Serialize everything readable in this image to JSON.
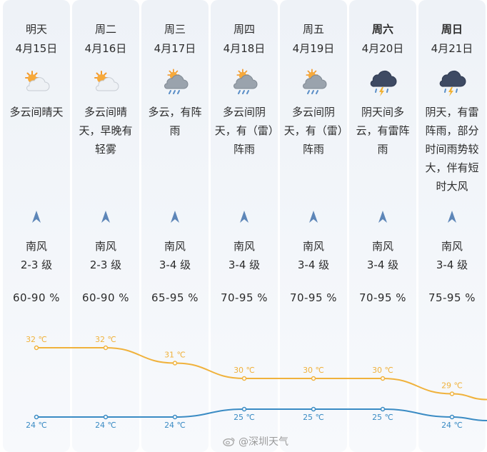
{
  "days": [
    {
      "day": "明天",
      "date": "4月15日",
      "weather": "sunny-cloudy",
      "desc": "多云间晴天",
      "wind_dir": "南风",
      "wind_level": "2-3 级",
      "humidity": "60-90 %",
      "high": "32 ℃",
      "low": "24 ℃"
    },
    {
      "day": "周二",
      "date": "4月16日",
      "weather": "sunny-cloudy",
      "desc": "多云间晴天，早晚有轻雾",
      "wind_dir": "南风",
      "wind_level": "2-3 级",
      "humidity": "60-90 %",
      "high": "32 ℃",
      "low": "24 ℃"
    },
    {
      "day": "周三",
      "date": "4月17日",
      "weather": "cloudy-rain",
      "desc": "多云，有阵雨",
      "wind_dir": "南风",
      "wind_level": "3-4 级",
      "humidity": "65-95 %",
      "high": "31 ℃",
      "low": "24 ℃"
    },
    {
      "day": "周四",
      "date": "4月18日",
      "weather": "cloudy-rain",
      "desc": "多云间阴天，有（雷）阵雨",
      "wind_dir": "南风",
      "wind_level": "3-4 级",
      "humidity": "70-95 %",
      "high": "30 ℃",
      "low": "25 ℃"
    },
    {
      "day": "周五",
      "date": "4月19日",
      "weather": "cloudy-rain",
      "desc": "多云间阴天，有（雷）阵雨",
      "wind_dir": "南风",
      "wind_level": "3-4 级",
      "humidity": "70-95 %",
      "high": "30 ℃",
      "low": "25 ℃"
    },
    {
      "day": "周六",
      "date": "4月20日",
      "weather": "thunderstorm",
      "desc": "阴天间多云，有雷阵雨",
      "wind_dir": "南风",
      "wind_level": "3-4 级",
      "humidity": "70-95 %",
      "high": "30 ℃",
      "low": "25 ℃"
    },
    {
      "day": "周日",
      "date": "4月21日",
      "weather": "thunderstorm",
      "desc": "阴天，有雷阵雨，部分时间雨势较大，伴有短时大风",
      "wind_dir": "南风",
      "wind_level": "3-4 级",
      "humidity": "75-95 %",
      "high": "29 ℃",
      "low": "24 ℃"
    }
  ],
  "bold_days": [
    "周六",
    "周日"
  ],
  "temps": {
    "high_values": [
      32,
      32,
      31,
      30,
      30,
      30,
      29
    ],
    "low_values": [
      24,
      24,
      24,
      25,
      25,
      25,
      24
    ],
    "high_color": "#f0b23c",
    "low_color": "#3a8bc4"
  },
  "watermark": "@深圳天气"
}
